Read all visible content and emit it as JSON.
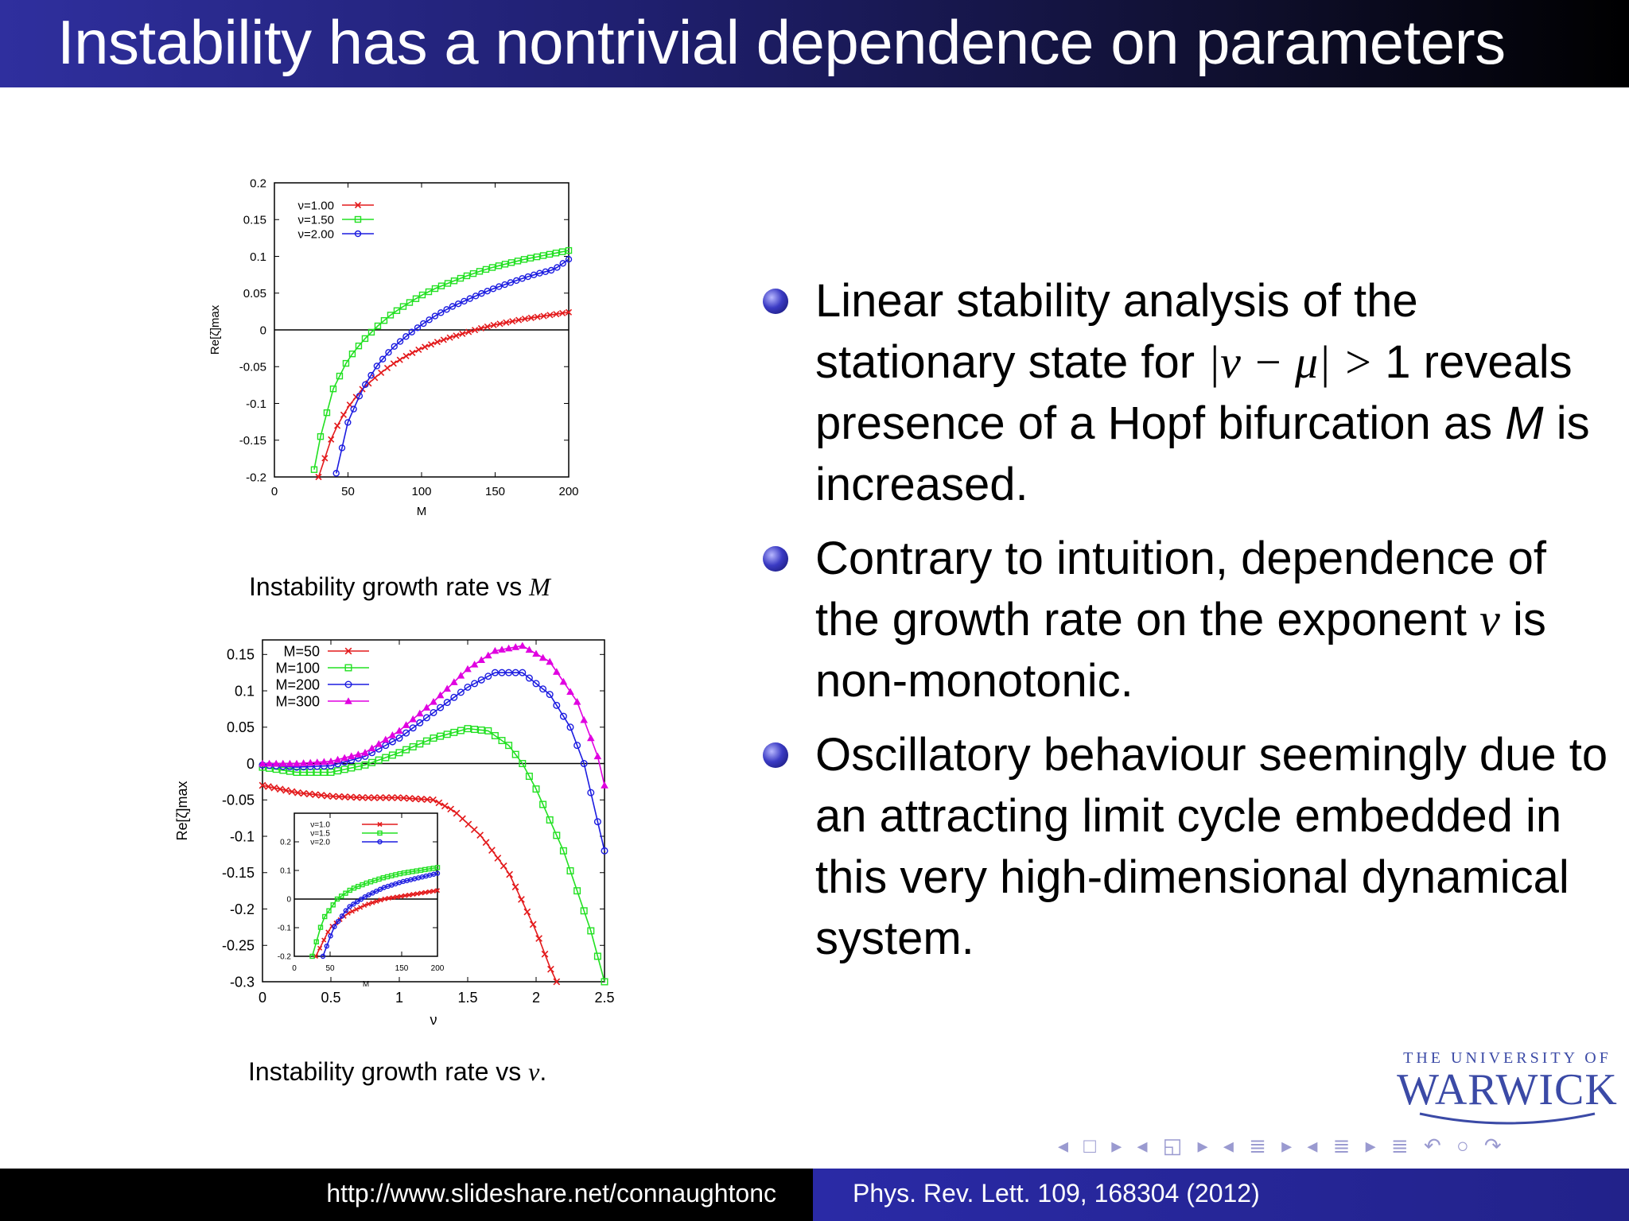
{
  "slide": {
    "title": "Instability has a nontrivial dependence on parameters",
    "caption1_prefix": "Instability growth rate vs ",
    "caption1_var": "M",
    "caption2_prefix": "Instability growth rate vs ",
    "caption2_var": "ν",
    "caption2_suffix": ".",
    "bullets": [
      {
        "pre": "Linear stability analysis of the stationary state for ",
        "math": "|ν − μ| > ",
        "mid": "1 reveals presence of a Hopf bifurcation as ",
        "var": "M",
        "post": " is increased."
      },
      {
        "pre": "Contrary to intuition, dependence of the growth rate on the exponent ",
        "var": "ν",
        "post": " is non-monotonic."
      },
      {
        "pre": "Oscillatory behaviour seemingly due to an attracting limit cycle embedded in this very high-dimensional dynamical system."
      }
    ],
    "logo_line1": "THE UNIVERSITY OF",
    "logo_line2": "WARWICK",
    "nav_symbols": "◂ □ ▸ ◂ ◱ ▸ ◂ ≣ ▸ ◂ ≣ ▸   ≣   ↶ ○ ↷",
    "footer_left": "http://www.slideshare.net/connaughtonc",
    "footer_right": "Phys. Rev. Lett. 109, 168304 (2012)"
  },
  "chart_data": [
    {
      "type": "line",
      "xlabel": "M",
      "ylabel": "Re[ζ]max",
      "xlim": [
        0,
        200
      ],
      "ylim": [
        -0.2,
        0.2
      ],
      "xticks": [
        "0",
        "50",
        "100",
        "150",
        "200"
      ],
      "yticks": [
        "0.2",
        "0.15",
        "0.1",
        "0.05",
        "0",
        "-0.05",
        "-0.1",
        "-0.15",
        "-0.2"
      ],
      "legend_position": "top-left",
      "series": [
        {
          "name": "ν=1.00",
          "color": "#e31a1c",
          "marker": "cross",
          "x": [
            30,
            40,
            50,
            60,
            70,
            80,
            90,
            100,
            110,
            120,
            130,
            140,
            150,
            160,
            170,
            180,
            190,
            200
          ],
          "values": [
            -0.2,
            -0.14,
            -0.105,
            -0.08,
            -0.062,
            -0.047,
            -0.035,
            -0.025,
            -0.017,
            -0.01,
            -0.004,
            0.002,
            0.007,
            0.011,
            0.015,
            0.018,
            0.021,
            0.024
          ]
        },
        {
          "name": "ν=1.50",
          "color": "#22e022",
          "marker": "square",
          "x": [
            27,
            30,
            40,
            50,
            60,
            70,
            80,
            90,
            100,
            110,
            120,
            130,
            140,
            150,
            160,
            170,
            180,
            190,
            200
          ],
          "values": [
            -0.19,
            -0.155,
            -0.08,
            -0.04,
            -0.015,
            0.005,
            0.022,
            0.035,
            0.047,
            0.057,
            0.065,
            0.073,
            0.08,
            0.086,
            0.091,
            0.096,
            0.1,
            0.104,
            0.108
          ]
        },
        {
          "name": "ν=2.00",
          "color": "#1c1ce0",
          "marker": "circle",
          "x": [
            42,
            50,
            60,
            70,
            80,
            90,
            100,
            110,
            120,
            130,
            140,
            150,
            160,
            170,
            180,
            190,
            200
          ],
          "values": [
            -0.195,
            -0.125,
            -0.08,
            -0.048,
            -0.025,
            -0.008,
            0.007,
            0.02,
            0.031,
            0.04,
            0.049,
            0.057,
            0.064,
            0.071,
            0.077,
            0.082,
            0.096
          ]
        }
      ]
    },
    {
      "type": "line",
      "xlabel": "ν",
      "ylabel": "Re[ζ]max",
      "xlim": [
        0,
        2.5
      ],
      "ylim": [
        -0.3,
        0.17
      ],
      "xticks": [
        "0",
        "0.5",
        "1",
        "1.5",
        "2",
        "2.5"
      ],
      "yticks": [
        "0.15",
        "0.1",
        "0.05",
        "0",
        "-0.05",
        "-0.1",
        "-0.15",
        "-0.2",
        "-0.25",
        "-0.3"
      ],
      "legend_position": "top-left",
      "series": [
        {
          "name": "M=50",
          "color": "#e31a1c",
          "marker": "cross",
          "x": [
            0,
            0.25,
            0.5,
            0.75,
            1.0,
            1.25,
            1.4,
            1.6,
            1.8,
            2.0,
            2.1,
            2.15
          ],
          "values": [
            -0.03,
            -0.04,
            -0.045,
            -0.047,
            -0.047,
            -0.05,
            -0.065,
            -0.1,
            -0.15,
            -0.23,
            -0.28,
            -0.3
          ]
        },
        {
          "name": "M=100",
          "color": "#22e022",
          "marker": "square",
          "x": [
            0,
            0.25,
            0.5,
            0.75,
            1.0,
            1.25,
            1.5,
            1.65,
            1.8,
            1.9,
            2.0,
            2.2,
            2.4,
            2.5
          ],
          "values": [
            -0.005,
            -0.012,
            -0.012,
            -0.002,
            0.015,
            0.035,
            0.048,
            0.045,
            0.025,
            0.0,
            -0.035,
            -0.12,
            -0.23,
            -0.3
          ]
        },
        {
          "name": "M=200",
          "color": "#1c1ce0",
          "marker": "circle",
          "x": [
            0,
            0.25,
            0.5,
            0.75,
            1.0,
            1.25,
            1.5,
            1.7,
            1.9,
            2.1,
            2.25,
            2.35,
            2.5
          ],
          "values": [
            -0.002,
            -0.005,
            -0.003,
            0.01,
            0.035,
            0.07,
            0.105,
            0.125,
            0.125,
            0.095,
            0.05,
            0.0,
            -0.12
          ]
        },
        {
          "name": "M=300",
          "color": "#e000e0",
          "marker": "triangle",
          "x": [
            0,
            0.25,
            0.5,
            0.75,
            1.0,
            1.25,
            1.5,
            1.7,
            1.9,
            2.1,
            2.3,
            2.45,
            2.5
          ],
          "values": [
            0.0,
            0.0,
            0.003,
            0.015,
            0.045,
            0.085,
            0.13,
            0.155,
            0.162,
            0.14,
            0.085,
            0.01,
            -0.03
          ]
        }
      ],
      "inset": {
        "xlabel": "M",
        "xlim": [
          0,
          200
        ],
        "ylim": [
          -0.2,
          0.3
        ],
        "xticks": [
          "0",
          "50",
          "150",
          "200"
        ],
        "yticks": [
          "0.2",
          "0.1",
          "0",
          "-0.1",
          "-0.2"
        ],
        "series": [
          {
            "name": "ν=1.0",
            "color": "#e31a1c",
            "marker": "cross",
            "x": [
              30,
              50,
              75,
              100,
              125,
              150,
              175,
              200
            ],
            "values": [
              -0.2,
              -0.1,
              -0.05,
              -0.02,
              0.0,
              0.01,
              0.02,
              0.03
            ]
          },
          {
            "name": "ν=1.5",
            "color": "#22e022",
            "marker": "square",
            "x": [
              25,
              40,
              60,
              80,
              100,
              125,
              150,
              175,
              200
            ],
            "values": [
              -0.2,
              -0.07,
              0.0,
              0.035,
              0.055,
              0.075,
              0.09,
              0.1,
              0.11
            ]
          },
          {
            "name": "ν=2.0",
            "color": "#1c1ce0",
            "marker": "circle",
            "x": [
              40,
              55,
              75,
              100,
              125,
              150,
              175,
              200
            ],
            "values": [
              -0.2,
              -0.1,
              -0.03,
              0.01,
              0.04,
              0.06,
              0.075,
              0.09
            ]
          }
        ]
      }
    }
  ]
}
